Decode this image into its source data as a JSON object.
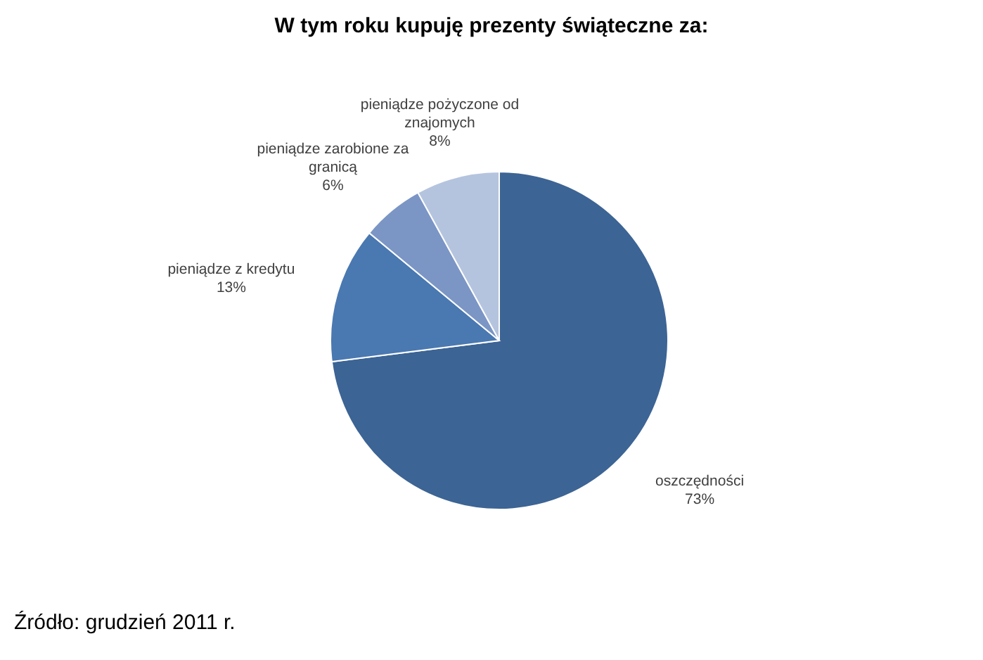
{
  "chart_data": {
    "type": "pie",
    "title": "W tym roku kupuję prezenty świąteczne za:",
    "categories": [
      "oszczędności",
      "pieniądze z kredytu",
      "pieniądze zarobione za granicą",
      "pieniądze pożyczone od znajomych"
    ],
    "values": [
      73,
      13,
      6,
      8
    ],
    "value_labels": [
      "73%",
      "13%",
      "6%",
      "8%"
    ],
    "legend": false,
    "colors": [
      "#3c6494",
      "#4a78b1",
      "#7b96c5",
      "#b5c4de"
    ],
    "annotations": [
      "Źródło: grudzień 2011 r."
    ]
  }
}
